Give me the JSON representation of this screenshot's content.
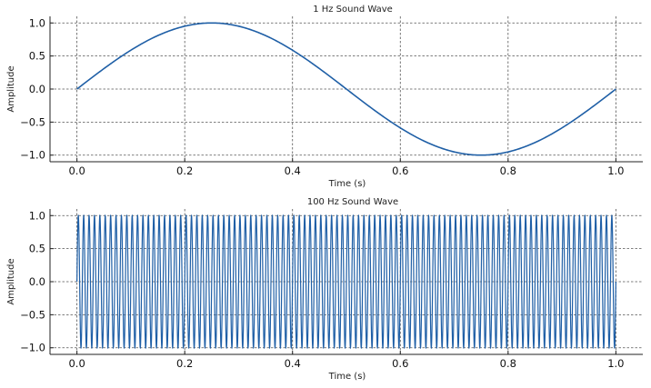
{
  "chart_data": [
    {
      "type": "line",
      "title": "1 Hz Sound Wave",
      "xlabel": "Time (s)",
      "ylabel": "Amplitude",
      "xlim": [
        -0.05,
        1.05
      ],
      "ylim": [
        -1.1,
        1.1
      ],
      "xticks": [
        0.0,
        0.2,
        0.4,
        0.6,
        0.8,
        1.0
      ],
      "xtick_labels": [
        "0.0",
        "0.2",
        "0.4",
        "0.6",
        "0.8",
        "1.0"
      ],
      "yticks": [
        -1.0,
        -0.5,
        0.0,
        0.5,
        1.0
      ],
      "ytick_labels": [
        "−1.0",
        "−0.5",
        "0.0",
        "0.5",
        "1.0"
      ],
      "grid": true,
      "series": [
        {
          "name": "sin(2π·1·t)",
          "frequency_hz": 1,
          "amplitude": 1,
          "t_start": 0,
          "t_end": 1,
          "color": "#1f5fa6"
        }
      ]
    },
    {
      "type": "line",
      "title": "100 Hz Sound Wave",
      "xlabel": "Time (s)",
      "ylabel": "Amplitude",
      "xlim": [
        -0.05,
        1.05
      ],
      "ylim": [
        -1.1,
        1.1
      ],
      "xticks": [
        0.0,
        0.2,
        0.4,
        0.6,
        0.8,
        1.0
      ],
      "xtick_labels": [
        "0.0",
        "0.2",
        "0.4",
        "0.6",
        "0.8",
        "1.0"
      ],
      "yticks": [
        -1.0,
        -0.5,
        0.0,
        0.5,
        1.0
      ],
      "ytick_labels": [
        "−1.0",
        "−0.5",
        "0.0",
        "0.5",
        "1.0"
      ],
      "grid": true,
      "series": [
        {
          "name": "sin(2π·100·t)",
          "frequency_hz": 100,
          "amplitude": 1,
          "t_start": 0,
          "t_end": 1,
          "color": "#1f5fa6"
        }
      ]
    }
  ]
}
